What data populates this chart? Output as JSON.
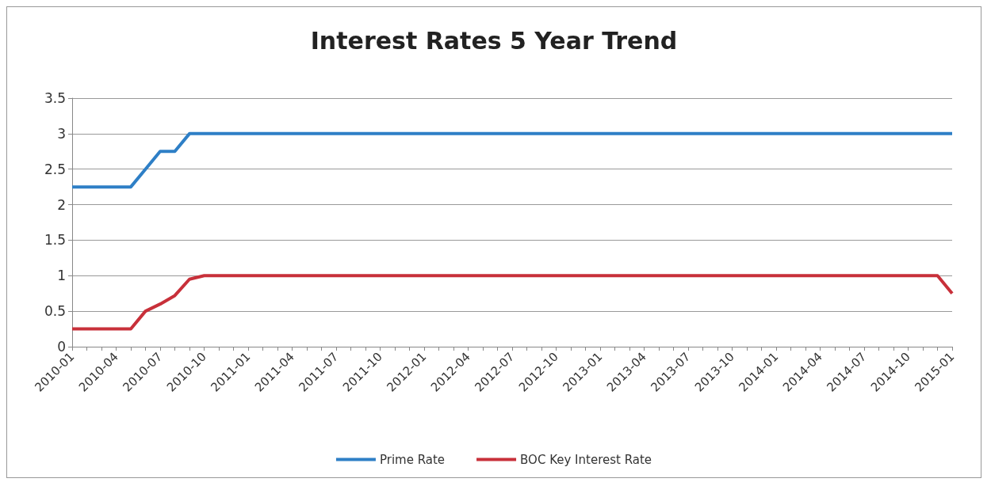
{
  "chart_data": {
    "type": "line",
    "title": "Interest Rates 5 Year Trend",
    "categories": [
      "2010-01",
      null,
      null,
      "2010-04",
      null,
      null,
      "2010-07",
      null,
      null,
      "2010-10",
      null,
      null,
      "2011-01",
      null,
      null,
      "2011-04",
      null,
      null,
      "2011-07",
      null,
      null,
      "2011-10",
      null,
      null,
      "2012-01",
      null,
      null,
      "2012-04",
      null,
      null,
      "2012-07",
      null,
      null,
      "2012-10",
      null,
      null,
      "2013-01",
      null,
      null,
      "2013-04",
      null,
      null,
      "2013-07",
      null,
      null,
      "2013-10",
      null,
      null,
      "2014-01",
      null,
      null,
      "2014-04",
      null,
      null,
      "2014-07",
      null,
      null,
      "2014-10",
      null,
      null,
      "2015-01"
    ],
    "series": [
      {
        "name": "Prime Rate",
        "color": "#2e7fc6",
        "values": [
          2.25,
          2.25,
          2.25,
          2.25,
          2.25,
          2.5,
          2.75,
          2.75,
          3,
          3,
          3,
          3,
          3,
          3,
          3,
          3,
          3,
          3,
          3,
          3,
          3,
          3,
          3,
          3,
          3,
          3,
          3,
          3,
          3,
          3,
          3,
          3,
          3,
          3,
          3,
          3,
          3,
          3,
          3,
          3,
          3,
          3,
          3,
          3,
          3,
          3,
          3,
          3,
          3,
          3,
          3,
          3,
          3,
          3,
          3,
          3,
          3,
          3,
          3,
          3,
          3
        ]
      },
      {
        "name": "BOC Key Interest Rate",
        "color": "#c8303a",
        "values": [
          0.25,
          0.25,
          0.25,
          0.25,
          0.25,
          0.5,
          0.6,
          0.72,
          0.95,
          1,
          1,
          1,
          1,
          1,
          1,
          1,
          1,
          1,
          1,
          1,
          1,
          1,
          1,
          1,
          1,
          1,
          1,
          1,
          1,
          1,
          1,
          1,
          1,
          1,
          1,
          1,
          1,
          1,
          1,
          1,
          1,
          1,
          1,
          1,
          1,
          1,
          1,
          1,
          1,
          1,
          1,
          1,
          1,
          1,
          1,
          1,
          1,
          1,
          1,
          1,
          0.75
        ]
      }
    ],
    "ylim": [
      0,
      3.5
    ],
    "yticks": [
      0,
      0.5,
      1,
      1.5,
      2,
      2.5,
      3,
      3.5
    ],
    "grid": "y",
    "legend": "bottom",
    "marker": "none",
    "line_style": "solid"
  }
}
